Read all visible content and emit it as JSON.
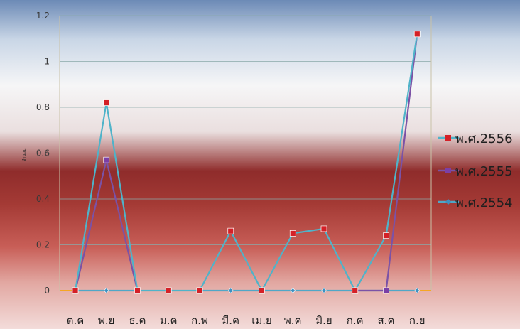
{
  "chart_data": {
    "type": "line",
    "title": "",
    "xlabel": "",
    "ylabel": "จำนวน",
    "categories": [
      "ต.ค",
      "พ.ย",
      "ธ.ค",
      "ม.ค",
      "ก.พ",
      "มี.ค",
      "เม.ย",
      "พ.ค",
      "มิ.ย",
      "ก.ค",
      "ส.ค",
      "ก.ย"
    ],
    "yticks": [
      "0",
      "0.2",
      "0.4",
      "0.6",
      "0.8",
      "1",
      "1.2"
    ],
    "ylim": [
      0,
      1.2
    ],
    "grid": true,
    "legend_position": "right",
    "series": [
      {
        "name": "พ.ศ.2556",
        "color": "#4fb3c9",
        "marker": "square",
        "marker_color": "#d42027",
        "values": [
          0,
          0.82,
          0,
          0,
          0,
          0.26,
          0,
          0.25,
          0.27,
          0,
          0.24,
          1.12
        ]
      },
      {
        "name": "พ.ศ.2555",
        "color": "#7b52a6",
        "marker": "square",
        "marker_color": "#7b3fa6",
        "values": [
          0,
          0.57,
          0,
          null,
          0,
          null,
          0,
          null,
          null,
          0,
          0,
          1.12
        ]
      },
      {
        "name": "พ.ศ.2554",
        "color": "#4fa7c7",
        "marker": "diamond",
        "marker_color": "#3f8fbf",
        "values": [
          0,
          0,
          0,
          null,
          0,
          0,
          0,
          0,
          0,
          0,
          0,
          0
        ]
      }
    ]
  }
}
